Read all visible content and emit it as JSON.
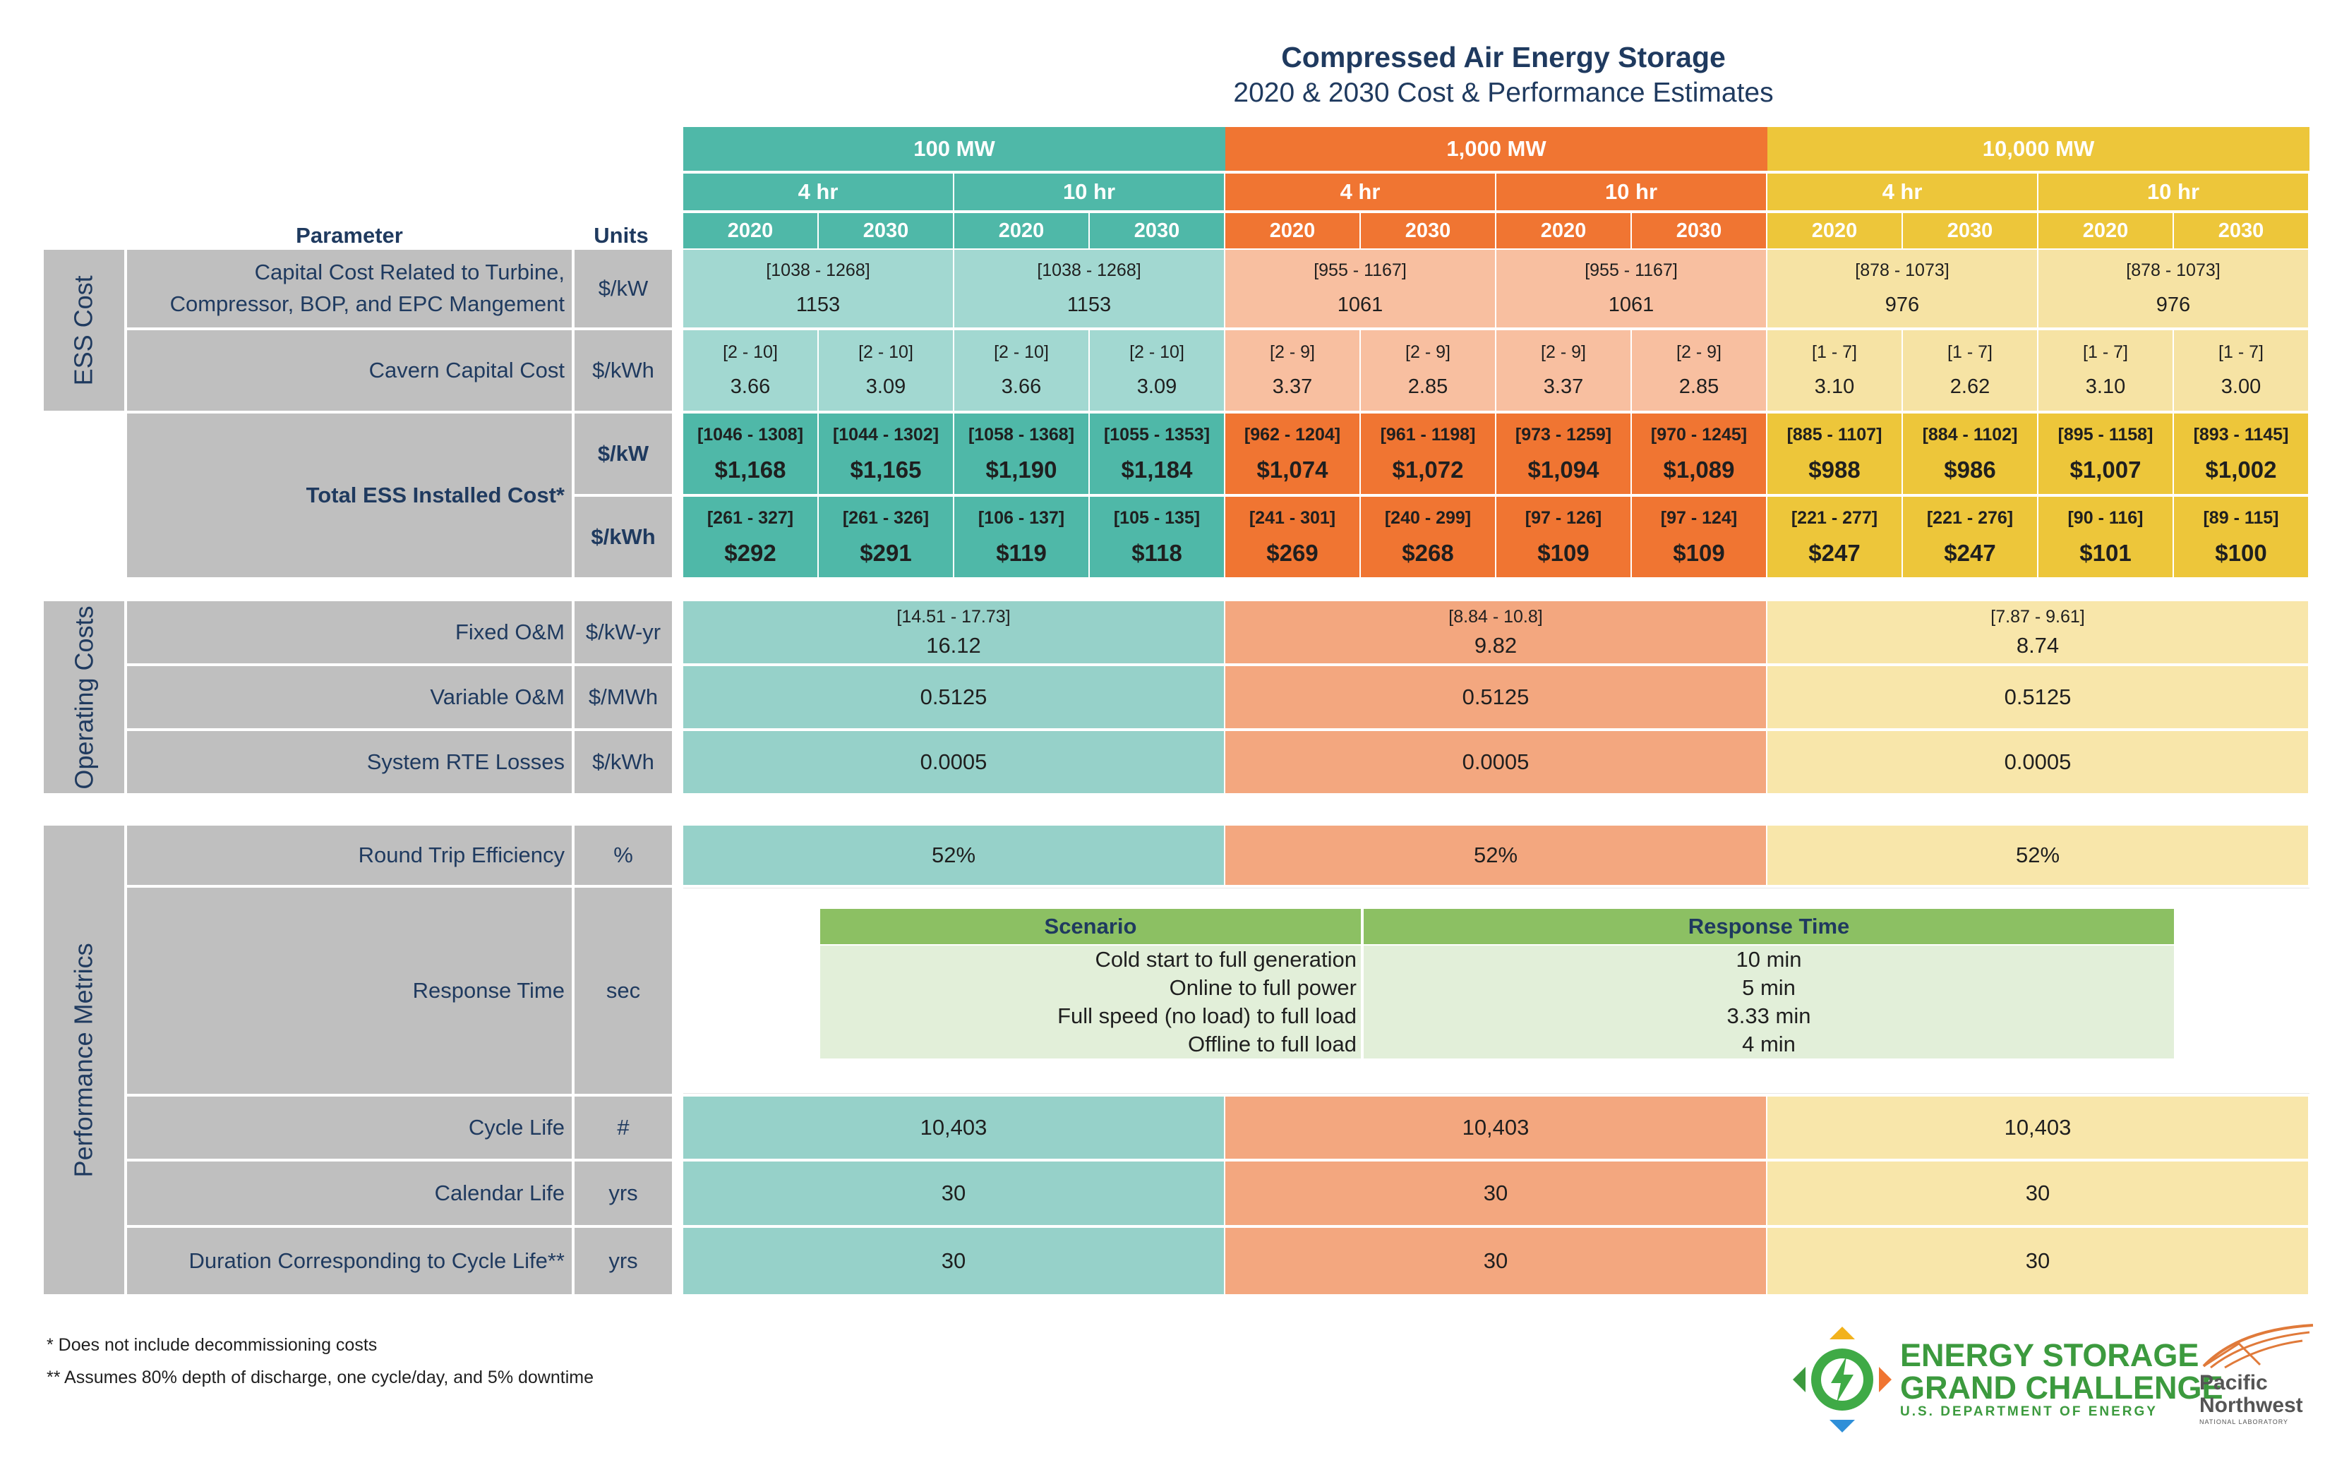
{
  "title": "Compressed Air Energy Storage",
  "subtitle": "2020 & 2030 Cost & Performance Estimates",
  "colors": {
    "teal": "#4fb8a8",
    "teal_light": "#a2d8d1",
    "teal_mid": "#96d1c9",
    "orange": "#f07532",
    "orange_light": "#f8bfa0",
    "orange_mid": "#f3a77f",
    "yellow": "#edc63a",
    "yellow_light": "#f6e3a4",
    "yellow_mid": "#f8e6aa",
    "grey": "#bfbfbf",
    "navy": "#1f3a5f",
    "green": "#8cc063"
  },
  "header": {
    "parameter": "Parameter",
    "units": "Units",
    "power": [
      "100 MW",
      "1,000 MW",
      "10,000 MW"
    ],
    "durations": [
      "4 hr",
      "10 hr",
      "4 hr",
      "10 hr",
      "4 hr",
      "10 hr"
    ],
    "years": [
      "2020",
      "2030",
      "2020",
      "2030",
      "2020",
      "2030",
      "2020",
      "2030",
      "2020",
      "2030",
      "2020",
      "2030"
    ]
  },
  "sections": {
    "ess_cost": "ESS Cost",
    "operating_costs": "Operating Costs",
    "performance": "Performance Metrics"
  },
  "capital": {
    "label": "Capital Cost Related to Turbine, Compressor, BOP, and EPC Mangement",
    "unit": "$/kW",
    "cells": [
      {
        "range": "[1038 - 1268]",
        "value": "1153"
      },
      {
        "range": "[1038 - 1268]",
        "value": "1153"
      },
      {
        "range": "[955 - 1167]",
        "value": "1061"
      },
      {
        "range": "[955 - 1167]",
        "value": "1061"
      },
      {
        "range": "[878 - 1073]",
        "value": "976"
      },
      {
        "range": "[878 - 1073]",
        "value": "976"
      }
    ]
  },
  "cavern": {
    "label": "Cavern Capital Cost",
    "unit": "$/kWh",
    "cells": [
      {
        "range": "[2 - 10]",
        "value": "3.66"
      },
      {
        "range": "[2 - 10]",
        "value": "3.09"
      },
      {
        "range": "[2 - 10]",
        "value": "3.66"
      },
      {
        "range": "[2 - 10]",
        "value": "3.09"
      },
      {
        "range": "[2 - 9]",
        "value": "3.37"
      },
      {
        "range": "[2 - 9]",
        "value": "2.85"
      },
      {
        "range": "[2 - 9]",
        "value": "3.37"
      },
      {
        "range": "[2 - 9]",
        "value": "2.85"
      },
      {
        "range": "[1 - 7]",
        "value": "3.10"
      },
      {
        "range": "[1 - 7]",
        "value": "2.62"
      },
      {
        "range": "[1 - 7]",
        "value": "3.10"
      },
      {
        "range": "[1 - 7]",
        "value": "3.00"
      }
    ]
  },
  "total": {
    "label": "Total ESS Installed Cost*",
    "unit_kw": "$/kW",
    "unit_kwh": "$/kWh",
    "kw": [
      {
        "range": "[1046 - 1308]",
        "value": "$1,168"
      },
      {
        "range": "[1044 - 1302]",
        "value": "$1,165"
      },
      {
        "range": "[1058 - 1368]",
        "value": "$1,190"
      },
      {
        "range": "[1055 - 1353]",
        "value": "$1,184"
      },
      {
        "range": "[962 - 1204]",
        "value": "$1,074"
      },
      {
        "range": "[961 - 1198]",
        "value": "$1,072"
      },
      {
        "range": "[973 - 1259]",
        "value": "$1,094"
      },
      {
        "range": "[970 - 1245]",
        "value": "$1,089"
      },
      {
        "range": "[885 - 1107]",
        "value": "$988"
      },
      {
        "range": "[884 - 1102]",
        "value": "$986"
      },
      {
        "range": "[895 - 1158]",
        "value": "$1,007"
      },
      {
        "range": "[893 - 1145]",
        "value": "$1,002"
      }
    ],
    "kwh": [
      {
        "range": "[261 - 327]",
        "value": "$292"
      },
      {
        "range": "[261 - 326]",
        "value": "$291"
      },
      {
        "range": "[106 - 137]",
        "value": "$119"
      },
      {
        "range": "[105 - 135]",
        "value": "$118"
      },
      {
        "range": "[241 - 301]",
        "value": "$269"
      },
      {
        "range": "[240 - 299]",
        "value": "$268"
      },
      {
        "range": "[97 - 126]",
        "value": "$109"
      },
      {
        "range": "[97 - 124]",
        "value": "$109"
      },
      {
        "range": "[221 - 277]",
        "value": "$247"
      },
      {
        "range": "[221 - 276]",
        "value": "$247"
      },
      {
        "range": "[90 - 116]",
        "value": "$101"
      },
      {
        "range": "[89 - 115]",
        "value": "$100"
      }
    ]
  },
  "fixed_om": {
    "label": "Fixed O&M",
    "unit": "$/kW-yr",
    "cells": [
      {
        "range": "[14.51 - 17.73]",
        "value": "16.12"
      },
      {
        "range": "[8.84 - 10.8]",
        "value": "9.82"
      },
      {
        "range": "[7.87 - 9.61]",
        "value": "8.74"
      }
    ]
  },
  "variable_om": {
    "label": "Variable O&M",
    "unit": "$/MWh",
    "values": [
      "0.5125",
      "0.5125",
      "0.5125"
    ]
  },
  "rte_losses": {
    "label": "System RTE Losses",
    "unit": "$/kWh",
    "values": [
      "0.0005",
      "0.0005",
      "0.0005"
    ]
  },
  "rte": {
    "label": "Round Trip Efficiency",
    "unit": "%",
    "values": [
      "52%",
      "52%",
      "52%"
    ]
  },
  "response": {
    "label": "Response Time",
    "unit": "sec",
    "col_scenario": "Scenario",
    "col_time": "Response Time",
    "rows": [
      {
        "scenario": "Cold start to full generation",
        "time": "10 min"
      },
      {
        "scenario": "Online to full power",
        "time": "5 min"
      },
      {
        "scenario": "Full speed (no load) to full load",
        "time": "3.33 min"
      },
      {
        "scenario": "Offline to full load",
        "time": "4 min"
      }
    ]
  },
  "cycle_life": {
    "label": "Cycle Life",
    "unit": "#",
    "values": [
      "10,403",
      "10,403",
      "10,403"
    ]
  },
  "calendar_life": {
    "label": "Calendar Life",
    "unit": "yrs",
    "values": [
      "30",
      "30",
      "30"
    ]
  },
  "duration_cycle": {
    "label": "Duration Corresponding to Cycle Life**",
    "unit": "yrs",
    "values": [
      "30",
      "30",
      "30"
    ]
  },
  "footnotes": [
    "* Does not include decommissioning costs",
    "** Assumes 80% depth of discharge, one cycle/day, and 5% downtime"
  ],
  "logos": {
    "esgc_line1": "ENERGY STORAGE",
    "esgc_line2": "GRAND CHALLENGE",
    "esgc_line3": "U.S. DEPARTMENT OF ENERGY",
    "pnnl_line1": "Pacific",
    "pnnl_line2": "Northwest",
    "pnnl_line3": "NATIONAL LABORATORY"
  }
}
